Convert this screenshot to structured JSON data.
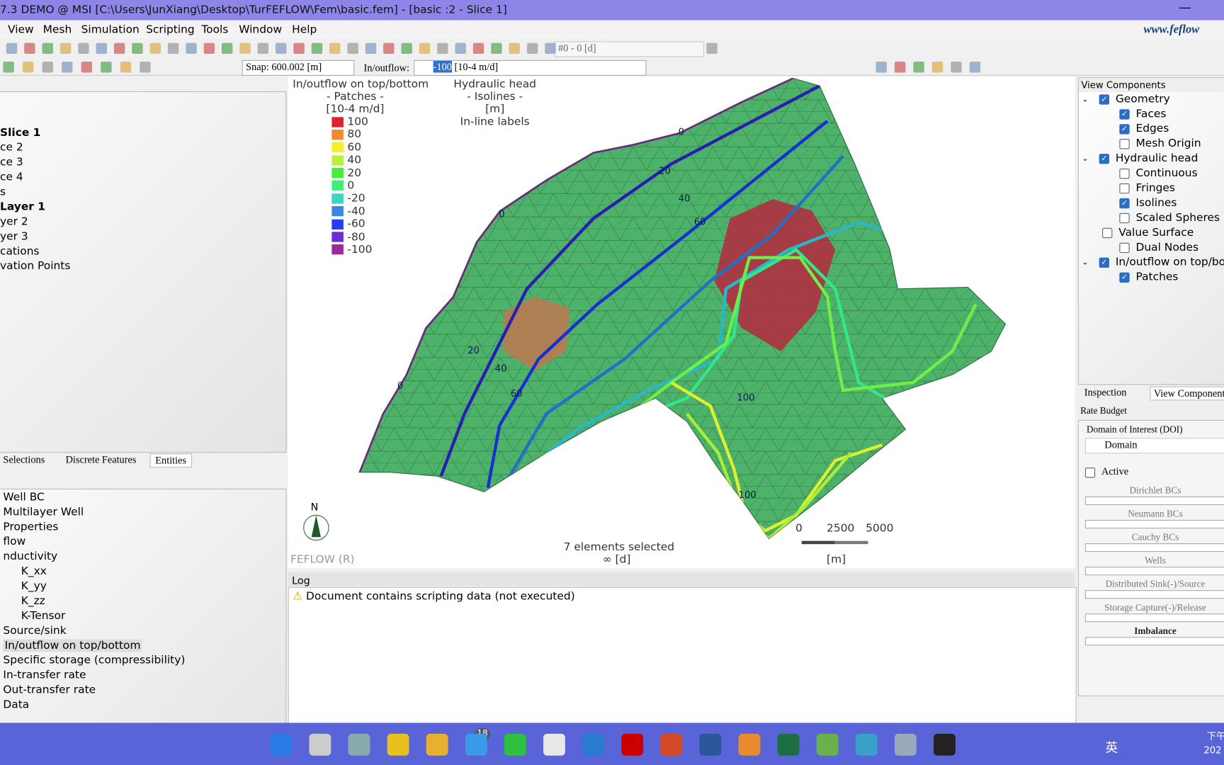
{
  "title_bar": "7.3 DEMO @ MSI [C:\\Users\\JunXiang\\Desktop\\TurFEFLOW\\Fem\\basic.fem] - [basic :2 - Slice 1]",
  "menu": [
    "View",
    "Mesh",
    "Simulation",
    "Scripting",
    "Tools",
    "Window",
    "Help"
  ],
  "brand": "www.feflow",
  "toolbar": {
    "time": "#0 - 0 [d]",
    "snap": "Snap: 600.002 [m]",
    "inflow_label": "In/outflow:",
    "inflow_value": "-100",
    "inflow_unit": "[10-4 m/d]"
  },
  "slices_tree": [
    {
      "text": "Slice 1",
      "bold": true
    },
    {
      "text": "ce 2"
    },
    {
      "text": "ce 3"
    },
    {
      "text": "ce 4"
    },
    {
      "text": "s"
    },
    {
      "text": "Layer 1",
      "bold": true
    },
    {
      "text": "yer 2"
    },
    {
      "text": "yer 3"
    },
    {
      "text": "cations"
    },
    {
      "text": "vation Points"
    }
  ],
  "left_tabs": [
    "Selections",
    "Discrete Features",
    "Entities"
  ],
  "entities": [
    {
      "text": "Well BC"
    },
    {
      "text": "Multilayer Well"
    },
    {
      "text": "Properties"
    },
    {
      "text": "flow"
    },
    {
      "text": "nductivity"
    },
    {
      "text": "K_xx",
      "indent": true
    },
    {
      "text": "K_yy",
      "indent": true
    },
    {
      "text": "K_zz",
      "indent": true
    },
    {
      "text": "K-Tensor",
      "indent": true
    },
    {
      "text": "Source/sink"
    },
    {
      "text": "In/outflow on top/bottom",
      "selected": true
    },
    {
      "text": "Specific storage (compressibility)"
    },
    {
      "text": "In-transfer rate"
    },
    {
      "text": "Out-transfer rate"
    },
    {
      "text": "Data"
    }
  ],
  "legend": {
    "title": "In/outflow on top/bottom",
    "sub": "- Patches -",
    "unit": "[10-4 m/d]",
    "entries": [
      {
        "label": "100",
        "color": "#e0202e"
      },
      {
        "label": "80",
        "color": "#f08a30"
      },
      {
        "label": "60",
        "color": "#f5ee30"
      },
      {
        "label": "40",
        "color": "#b8f03a"
      },
      {
        "label": "20",
        "color": "#44ee3a"
      },
      {
        "label": "0",
        "color": "#3cf07a"
      },
      {
        "label": "-20",
        "color": "#3cd6c8"
      },
      {
        "label": "-40",
        "color": "#3c86e0"
      },
      {
        "label": "-60",
        "color": "#2a3cf0"
      },
      {
        "label": "-80",
        "color": "#6a2ed8"
      },
      {
        "label": "-100",
        "color": "#9a2a9a"
      }
    ]
  },
  "isolines_legend": {
    "title": "Hydraulic head",
    "sub": "- Isolines -",
    "unit": "[m]",
    "note": "In-line labels"
  },
  "contour_labels": [
    "0",
    "0",
    "0",
    "20",
    "20",
    "40",
    "40",
    "60",
    "60",
    "100",
    "100"
  ],
  "north": "N",
  "scale": {
    "ticks": [
      "0",
      "2500",
      "5000"
    ],
    "unit": "[m]"
  },
  "status": "7 elements selected",
  "status_time": "∞ [d]",
  "watermark": "FEFLOW (R)",
  "log": {
    "title": "Log",
    "message": "Document contains scripting data (not executed)"
  },
  "view_components": {
    "title": "View Components",
    "items": [
      {
        "text": "Geometry",
        "level": 0,
        "checked": true,
        "expander": true
      },
      {
        "text": "Faces",
        "level": 1,
        "checked": true
      },
      {
        "text": "Edges",
        "level": 1,
        "checked": true
      },
      {
        "text": "Mesh Origin",
        "level": 1,
        "checked": false
      },
      {
        "text": "Hydraulic head",
        "level": 0,
        "checked": true,
        "expander": true
      },
      {
        "text": "Continuous",
        "level": 1,
        "checked": false
      },
      {
        "text": "Fringes",
        "level": 1,
        "checked": false
      },
      {
        "text": "Isolines",
        "level": 1,
        "checked": true
      },
      {
        "text": "Scaled Spheres",
        "level": 1,
        "checked": false
      },
      {
        "text": "Value Surface",
        "level": 0.5,
        "checked": false
      },
      {
        "text": "Dual Nodes",
        "level": 1,
        "checked": false
      },
      {
        "text": "In/outflow on top/bott",
        "level": 0,
        "checked": true,
        "expander": true
      },
      {
        "text": "Patches",
        "level": 1,
        "checked": true
      }
    ]
  },
  "right_tabs": [
    "Inspection",
    "View Components"
  ],
  "rate_budget": {
    "title": "Rate Budget",
    "doi_label": "Domain of Interest (DOI)",
    "doi": "Domain",
    "active": "Active",
    "rows": [
      "Dirichlet BCs",
      "Neumann BCs",
      "Cauchy BCs",
      "Wells",
      "Distributed Sink(-)/Source",
      "Storage Capture(-)/Release",
      "Imbalance"
    ]
  },
  "taskbar": {
    "badge": "18",
    "ime": "英",
    "clock": "下午",
    "year": "202"
  }
}
